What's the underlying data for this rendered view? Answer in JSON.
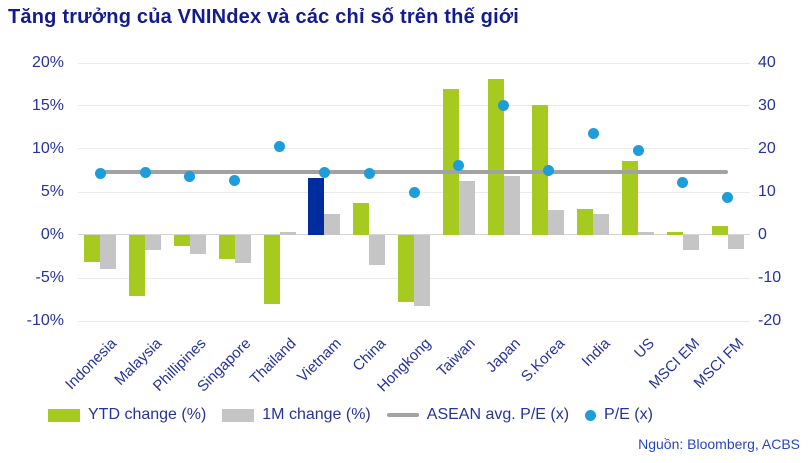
{
  "source": {
    "text": "Nguồn: Bloomberg, ACBS"
  },
  "chart_data": {
    "type": "combo",
    "title": "Tăng trưởng của VNINdex và các chỉ số trên thế giới",
    "categories": [
      "Indonesia",
      "Malaysia",
      "Phillipines",
      "Singapore",
      "Thailand",
      "Vietnam",
      "China",
      "Hongkong",
      "Taiwan",
      "Japan",
      "S.Korea",
      "India",
      "US",
      "MSCI EM",
      "MSCI FM"
    ],
    "series": [
      {
        "name": "YTD change (%)",
        "type": "bar",
        "axis": "left",
        "values": [
          -3.1,
          -7.1,
          -1.3,
          -2.8,
          -8.0,
          6.6,
          3.7,
          -7.8,
          17.0,
          18.1,
          15.1,
          3.0,
          8.6,
          0.4,
          1.0
        ]
      },
      {
        "name": "1M change (%)",
        "type": "bar",
        "axis": "left",
        "values": [
          -4.0,
          -1.8,
          -2.2,
          -3.3,
          0.3,
          2.5,
          -3.5,
          -8.2,
          6.3,
          6.9,
          2.9,
          2.4,
          0.3,
          -1.8,
          -1.6
        ]
      },
      {
        "name": "ASEAN avg. P/E (x)",
        "type": "line",
        "axis": "right",
        "value": 14.7
      },
      {
        "name": "P/E (x)",
        "type": "scatter",
        "axis": "right",
        "values": [
          14.4,
          14.6,
          13.6,
          12.6,
          20.6,
          14.6,
          14.2,
          9.9,
          16.1,
          30.1,
          15.0,
          23.6,
          19.6,
          12.2,
          8.8
        ]
      }
    ],
    "left_axis": {
      "min": -10,
      "max": 20,
      "grid_values": [
        20,
        15,
        10,
        5,
        0,
        -5,
        -10
      ],
      "ticks": [
        "20%",
        "15%",
        "10%",
        "5%",
        "0%",
        "-5%",
        "-10%"
      ]
    },
    "right_axis": {
      "min": -20,
      "max": 40,
      "ticks": [
        "40",
        "30",
        "20",
        "10",
        "0",
        "-10",
        "-20"
      ]
    },
    "highlight": {
      "category": "Vietnam",
      "series": "YTD change (%)"
    },
    "legend_position": "bottom",
    "grid": true,
    "colors": {
      "ytd_green": "#a6ca20",
      "bar_gray": "#c5c5c5",
      "vietnam_navy": "#002c9d",
      "line_gray": "#a2a2a2",
      "dot_blue": "#1d9dd9",
      "title_navy": "#121c8f",
      "label_blue": "#26339b",
      "source_blue": "#2946c0",
      "grid": "#ebebeb",
      "zero_line": "#d4d4d4"
    }
  }
}
